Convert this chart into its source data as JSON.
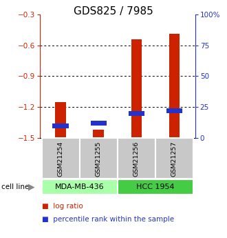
{
  "title": "GDS825 / 7985",
  "samples": [
    "GSM21254",
    "GSM21255",
    "GSM21256",
    "GSM21257"
  ],
  "log_ratio": [
    -1.15,
    -1.42,
    -0.54,
    -0.49
  ],
  "percentile_rank": [
    10,
    12,
    20,
    22
  ],
  "ylim_left": [
    -1.5,
    -0.3
  ],
  "ylim_right": [
    0,
    100
  ],
  "yticks_left": [
    -1.5,
    -1.2,
    -0.9,
    -0.6,
    -0.3
  ],
  "yticks_right": [
    0,
    25,
    50,
    75,
    100
  ],
  "ytick_labels_right": [
    "0",
    "25",
    "50",
    "75",
    "100%"
  ],
  "bar_bottom": -1.5,
  "red_color": "#cc2200",
  "blue_color": "#2233cc",
  "gray_bg": "#c8c8c8",
  "cell_line_colors": [
    "#aaffaa",
    "#44cc44"
  ],
  "cell_line_labels": [
    "MDA-MB-436",
    "HCC 1954"
  ],
  "cell_line_groups": [
    [
      0,
      1
    ],
    [
      2,
      3
    ]
  ],
  "title_fontsize": 11,
  "tick_fontsize": 7.5,
  "legend_fontsize": 7.5
}
